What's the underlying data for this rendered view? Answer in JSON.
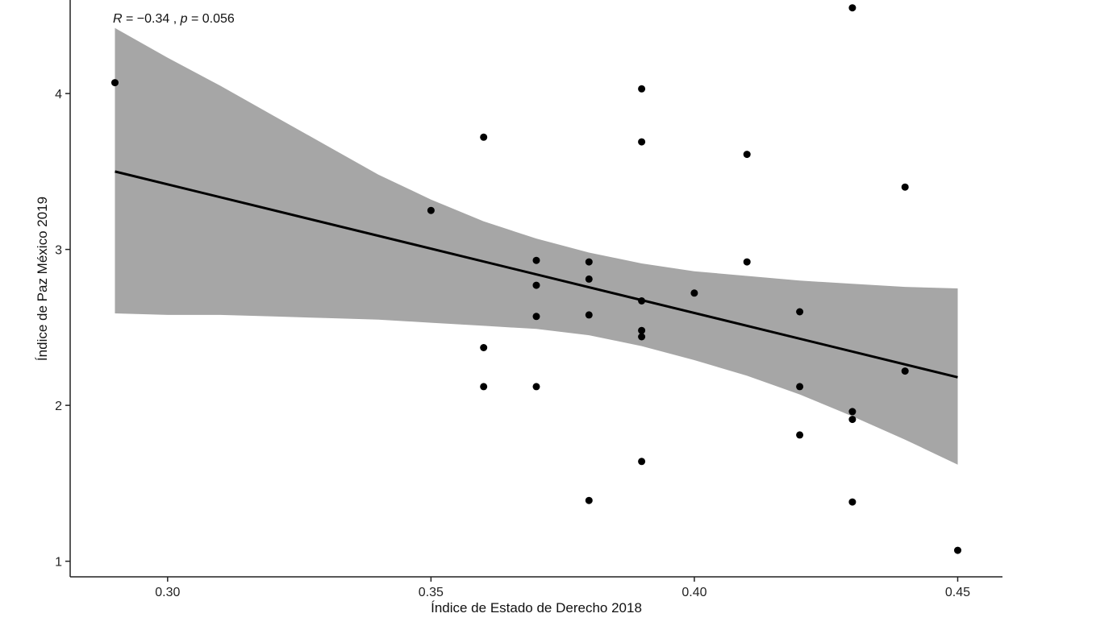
{
  "chart_data": {
    "type": "scatter",
    "xlabel": "Índice de Estado de Derecho 2018",
    "ylabel": "Índice de Paz México 2019",
    "annotation": {
      "r_symbol": "R",
      "r_text": " = −0.34 , ",
      "p_symbol": "p",
      "p_text": " = 0.056"
    },
    "xlim": [
      0.2815,
      0.4585
    ],
    "ylim": [
      0.9,
      4.6
    ],
    "x_ticks": [
      0.3,
      0.35,
      0.4,
      0.45
    ],
    "x_tick_labels": [
      "0.30",
      "0.35",
      "0.40",
      "0.45"
    ],
    "y_ticks": [
      1,
      2,
      3,
      4
    ],
    "y_tick_labels": [
      "1",
      "2",
      "3",
      "4"
    ],
    "grid": false,
    "colors": {
      "points": "#000000",
      "line": "#000000",
      "band": "#a6a6a6",
      "axis": "#222222"
    },
    "points": [
      {
        "x": 0.29,
        "y": 4.07
      },
      {
        "x": 0.35,
        "y": 3.25
      },
      {
        "x": 0.36,
        "y": 3.72
      },
      {
        "x": 0.36,
        "y": 2.37
      },
      {
        "x": 0.36,
        "y": 2.12
      },
      {
        "x": 0.37,
        "y": 2.93
      },
      {
        "x": 0.37,
        "y": 2.77
      },
      {
        "x": 0.37,
        "y": 2.57
      },
      {
        "x": 0.37,
        "y": 2.12
      },
      {
        "x": 0.38,
        "y": 2.92
      },
      {
        "x": 0.38,
        "y": 2.81
      },
      {
        "x": 0.38,
        "y": 2.58
      },
      {
        "x": 0.38,
        "y": 1.39
      },
      {
        "x": 0.39,
        "y": 4.03
      },
      {
        "x": 0.39,
        "y": 3.69
      },
      {
        "x": 0.39,
        "y": 2.67
      },
      {
        "x": 0.39,
        "y": 2.48
      },
      {
        "x": 0.39,
        "y": 2.44
      },
      {
        "x": 0.39,
        "y": 1.64
      },
      {
        "x": 0.4,
        "y": 2.72
      },
      {
        "x": 0.41,
        "y": 3.61
      },
      {
        "x": 0.41,
        "y": 2.92
      },
      {
        "x": 0.42,
        "y": 2.6
      },
      {
        "x": 0.42,
        "y": 2.12
      },
      {
        "x": 0.42,
        "y": 1.81
      },
      {
        "x": 0.43,
        "y": 4.55
      },
      {
        "x": 0.43,
        "y": 1.96
      },
      {
        "x": 0.43,
        "y": 1.91
      },
      {
        "x": 0.43,
        "y": 1.38
      },
      {
        "x": 0.44,
        "y": 3.4
      },
      {
        "x": 0.44,
        "y": 2.22
      },
      {
        "x": 0.45,
        "y": 1.07
      }
    ],
    "regression": {
      "x": [
        0.29,
        0.45
      ],
      "y": [
        3.5,
        2.18
      ]
    },
    "confidence_band": {
      "x": [
        0.29,
        0.3,
        0.31,
        0.32,
        0.33,
        0.34,
        0.35,
        0.36,
        0.37,
        0.38,
        0.39,
        0.4,
        0.41,
        0.42,
        0.43,
        0.44,
        0.45
      ],
      "upper": [
        4.42,
        4.23,
        4.05,
        3.86,
        3.67,
        3.48,
        3.32,
        3.18,
        3.07,
        2.98,
        2.91,
        2.86,
        2.83,
        2.8,
        2.78,
        2.76,
        2.75
      ],
      "lower": [
        2.59,
        2.58,
        2.58,
        2.57,
        2.56,
        2.55,
        2.53,
        2.51,
        2.49,
        2.45,
        2.38,
        2.29,
        2.19,
        2.07,
        1.93,
        1.78,
        1.62
      ]
    }
  }
}
